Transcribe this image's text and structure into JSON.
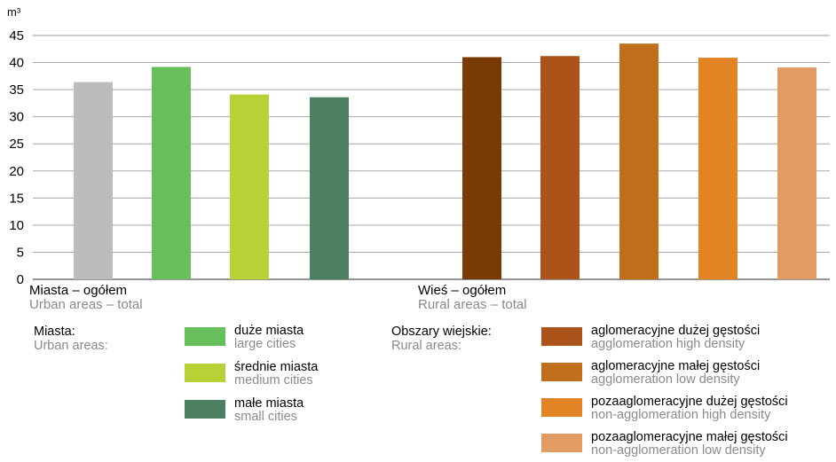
{
  "chart_data": {
    "type": "bar",
    "unit": "m³",
    "ylim": [
      0,
      45
    ],
    "yticks": [
      0,
      5,
      10,
      15,
      20,
      25,
      30,
      35,
      40,
      45
    ],
    "grid": true,
    "groups": [
      {
        "label_pl": "Miasta – ogółem",
        "label_en": "Urban areas – total"
      },
      {
        "label_pl": "Wieś – ogółem",
        "label_en": "Rural areas – total"
      }
    ],
    "bars": [
      {
        "value": 36.4,
        "color": "#bcbcbe"
      },
      {
        "value": 39.2,
        "color": "#66bf5a"
      },
      {
        "value": 34.1,
        "color": "#b6d236"
      },
      {
        "value": 33.6,
        "color": "#4c8060"
      },
      {
        "value": 41.0,
        "color": "#7a3a06"
      },
      {
        "value": 41.2,
        "color": "#ab5318"
      },
      {
        "value": 43.5,
        "color": "#c16f1c"
      },
      {
        "value": 40.9,
        "color": "#e28424"
      },
      {
        "value": 39.1,
        "color": "#e39b64"
      }
    ]
  },
  "legend": {
    "urban": {
      "title_pl": "Miasta:",
      "title_en": "Urban areas:",
      "items": [
        {
          "pl": "duże miasta",
          "en": "large cities",
          "color": "#66bf5a"
        },
        {
          "pl": "średnie miasta",
          "en": "medium cities",
          "color": "#b6d236"
        },
        {
          "pl": "małe miasta",
          "en": "small cities",
          "color": "#4c8060"
        }
      ]
    },
    "rural": {
      "title_pl": "Obszary wiejskie:",
      "title_en": "Rural areas:",
      "items": [
        {
          "pl": "aglomeracyjne dużej gęstości",
          "en": "agglomeration high density",
          "color": "#ab5318"
        },
        {
          "pl": "aglomeracyjne małej gęstości",
          "en": "agglomeration low density",
          "color": "#c16f1c"
        },
        {
          "pl": "pozaaglomeracyjne dużej gęstości",
          "en": "non-agglomeration high density",
          "color": "#e28424"
        },
        {
          "pl": "pozaaglomeracyjne małej gęstości",
          "en": "non-agglomeration low density",
          "color": "#e39b64"
        }
      ]
    }
  }
}
